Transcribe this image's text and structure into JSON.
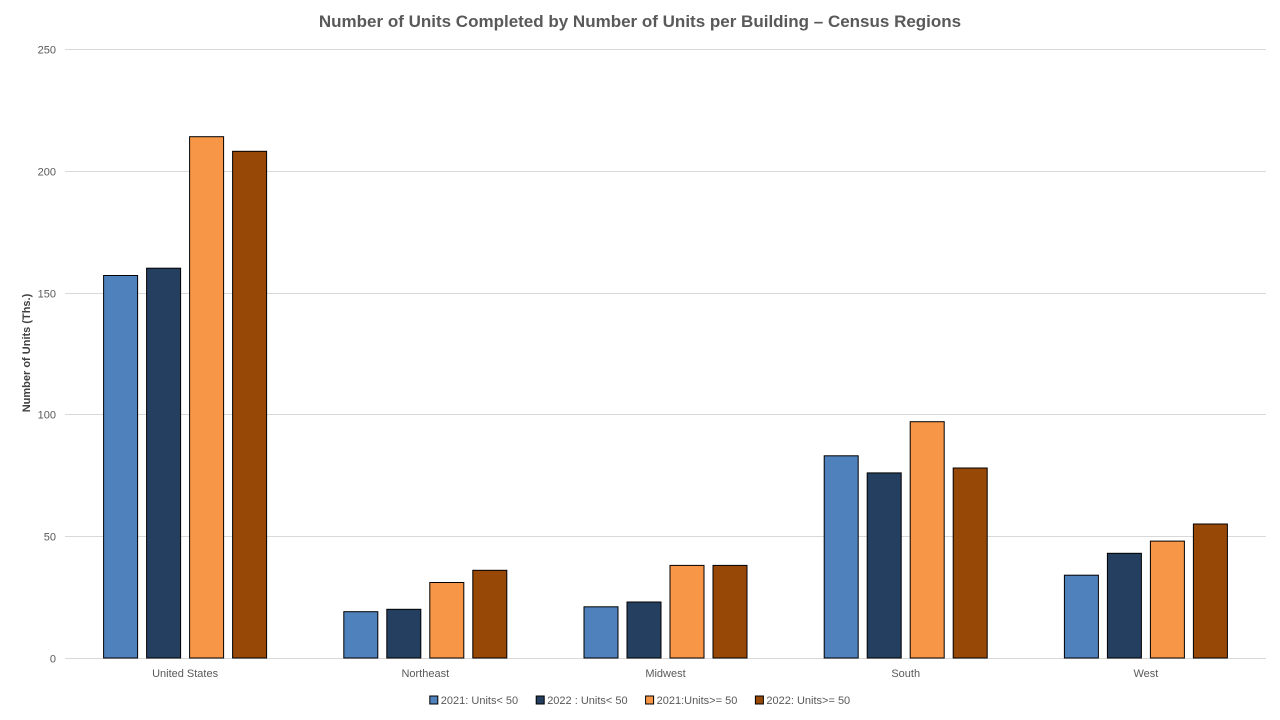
{
  "chart_data": {
    "type": "bar",
    "title": "Number of Units Completed by Number of Units per Building – Census Regions",
    "xlabel": "",
    "ylabel": "Number of Units (Ths.)",
    "ylim": [
      0,
      250
    ],
    "yticks": [
      0,
      50,
      100,
      150,
      200,
      250
    ],
    "grid": true,
    "legend_position": "bottom",
    "categories": [
      "United States",
      "Northeast",
      "Midwest",
      "South",
      "West"
    ],
    "series": [
      {
        "name": "2021: Units< 50",
        "color": "#4f81bd",
        "values": [
          157,
          19,
          21,
          83,
          34
        ]
      },
      {
        "name": "2022 : Units< 50",
        "color": "#243f60",
        "values": [
          160,
          20,
          23,
          76,
          43
        ]
      },
      {
        "name": "2021:Units>= 50",
        "color": "#f79646",
        "values": [
          214,
          31,
          38,
          97,
          48
        ]
      },
      {
        "name": "2022: Units>= 50",
        "color": "#974706",
        "values": [
          208,
          36,
          38,
          78,
          55
        ]
      }
    ]
  }
}
